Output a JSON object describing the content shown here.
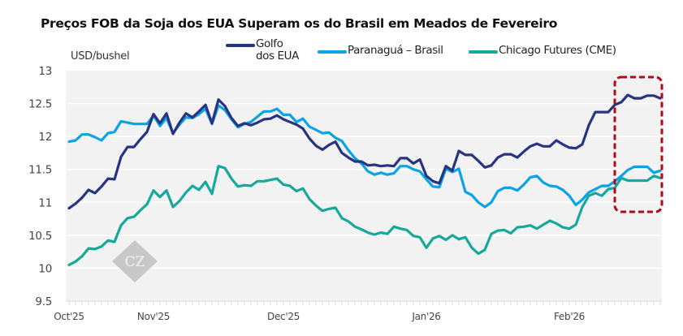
{
  "chart_data": {
    "type": "line",
    "title": "Preços FOB da Soja dos EUA Superam os do Brasil em Meados de Fevereiro",
    "ylabel": "USD/bushel",
    "xlabel": "",
    "ylim": [
      9.5,
      13
    ],
    "yticks": [
      "9.5",
      "10",
      "10.5",
      "11",
      "11.5",
      "12",
      "12.5",
      "13"
    ],
    "ytick_values": [
      9.5,
      10,
      10.5,
      11,
      11.5,
      12,
      12.5,
      13
    ],
    "xtick_labels": [
      "Oct'25",
      "Nov'25",
      "Dec'25",
      "Jan'26",
      "Feb'26"
    ],
    "xtick_index": [
      0,
      13,
      33,
      55,
      77
    ],
    "grid": true,
    "legend_position": "top",
    "n_points": 92,
    "highlight": {
      "type": "dashed-rounded-box",
      "start_index": 85,
      "end_index": 91,
      "color": "#b00a1a"
    },
    "series": [
      {
        "name": "Golfo dos EUA",
        "color": "#27347f",
        "values": [
          10.91,
          10.98,
          11.07,
          11.19,
          11.14,
          11.24,
          11.36,
          11.35,
          11.69,
          11.84,
          11.84,
          11.96,
          12.07,
          12.34,
          12.2,
          12.35,
          12.04,
          12.21,
          12.35,
          12.29,
          12.38,
          12.48,
          12.2,
          12.56,
          12.46,
          12.28,
          12.16,
          12.2,
          12.17,
          12.21,
          12.26,
          12.27,
          12.32,
          12.26,
          12.22,
          12.18,
          12.12,
          11.97,
          11.86,
          11.8,
          11.87,
          11.92,
          11.75,
          11.68,
          11.62,
          11.62,
          11.56,
          11.57,
          11.55,
          11.56,
          11.55,
          11.67,
          11.67,
          11.59,
          11.65,
          11.4,
          11.32,
          11.29,
          11.55,
          11.48,
          11.78,
          11.72,
          11.72,
          11.63,
          11.53,
          11.56,
          11.68,
          11.73,
          11.73,
          11.68,
          11.77,
          11.85,
          11.89,
          11.85,
          11.85,
          11.94,
          11.88,
          11.83,
          11.82,
          11.88,
          12.17,
          12.37,
          12.37,
          12.37,
          12.48,
          12.52,
          12.63,
          12.58,
          12.58,
          12.62,
          12.62,
          12.58
        ]
      },
      {
        "name": "Paranaguá – Brasil",
        "color": "#0aa3e6",
        "values": [
          11.92,
          11.94,
          12.03,
          12.03,
          11.99,
          11.94,
          12.05,
          12.07,
          12.23,
          12.21,
          12.19,
          12.19,
          12.19,
          12.32,
          12.16,
          12.28,
          12.05,
          12.18,
          12.29,
          12.28,
          12.34,
          12.42,
          12.19,
          12.47,
          12.4,
          12.26,
          12.14,
          12.19,
          12.22,
          12.3,
          12.38,
          12.38,
          12.42,
          12.33,
          12.33,
          12.22,
          12.27,
          12.15,
          12.1,
          12.05,
          12.06,
          11.98,
          11.93,
          11.79,
          11.67,
          11.59,
          11.47,
          11.42,
          11.45,
          11.42,
          11.44,
          11.55,
          11.55,
          11.5,
          11.47,
          11.35,
          11.24,
          11.23,
          11.51,
          11.46,
          11.51,
          11.16,
          11.11,
          11.0,
          10.93,
          11.0,
          11.17,
          11.22,
          11.22,
          11.18,
          11.27,
          11.38,
          11.4,
          11.3,
          11.25,
          11.24,
          11.19,
          11.1,
          10.96,
          11.04,
          11.15,
          11.2,
          11.25,
          11.25,
          11.32,
          11.4,
          11.49,
          11.54,
          11.54,
          11.54,
          11.45,
          11.48
        ]
      },
      {
        "name": "Chicago Futures (CME)",
        "color": "#16a89b",
        "values": [
          10.05,
          10.1,
          10.18,
          10.3,
          10.29,
          10.33,
          10.42,
          10.4,
          10.65,
          10.76,
          10.78,
          10.88,
          10.97,
          11.18,
          11.08,
          11.18,
          10.93,
          11.02,
          11.15,
          11.25,
          11.19,
          11.31,
          11.13,
          11.55,
          11.52,
          11.36,
          11.24,
          11.26,
          11.25,
          11.32,
          11.32,
          11.34,
          11.36,
          11.27,
          11.25,
          11.17,
          11.21,
          11.05,
          10.95,
          10.87,
          10.9,
          10.92,
          10.76,
          10.71,
          10.63,
          10.59,
          10.54,
          10.51,
          10.54,
          10.52,
          10.63,
          10.6,
          10.58,
          10.49,
          10.47,
          10.31,
          10.45,
          10.49,
          10.43,
          10.5,
          10.44,
          10.47,
          10.31,
          10.22,
          10.28,
          10.52,
          10.57,
          10.58,
          10.53,
          10.62,
          10.63,
          10.65,
          10.6,
          10.66,
          10.72,
          10.68,
          10.62,
          10.6,
          10.66,
          10.93,
          11.1,
          11.14,
          11.1,
          11.2,
          11.22,
          11.37,
          11.33,
          11.33,
          11.33,
          11.33,
          11.4,
          11.37
        ]
      }
    ]
  },
  "watermark": {
    "text": "CZ",
    "color": "#c8c8c8"
  }
}
